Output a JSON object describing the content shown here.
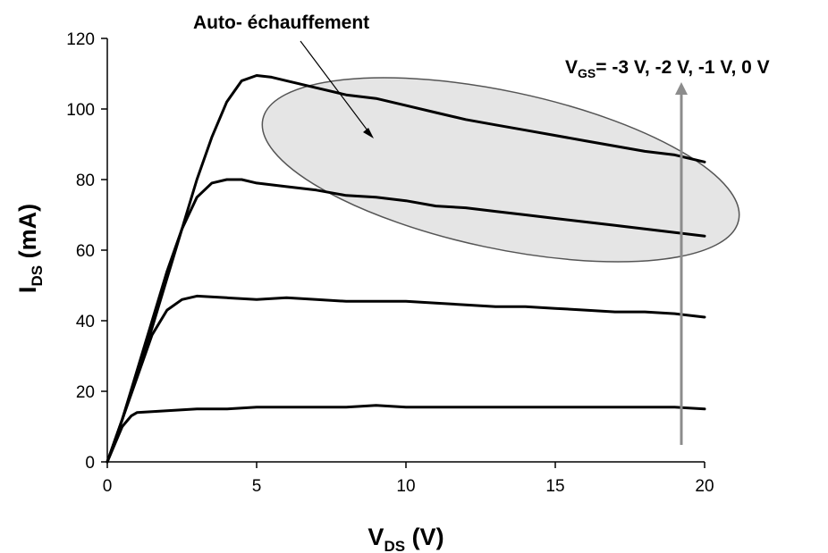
{
  "chart_data": {
    "type": "line",
    "xlabel": "V",
    "xlabel_sub": "DS",
    "xlabel_unit": " (V)",
    "ylabel": "I",
    "ylabel_sub": "DS",
    "ylabel_unit": " (mA)",
    "xlim": [
      0,
      20
    ],
    "ylim": [
      0,
      120
    ],
    "xticks": [
      0,
      5,
      10,
      15,
      20
    ],
    "yticks": [
      0,
      20,
      40,
      60,
      80,
      100,
      120
    ],
    "grid": false,
    "legend": "none",
    "annotations": {
      "self_heating": "Auto- échauffement",
      "vgs_prefix": "V",
      "vgs_sub": "GS",
      "vgs_values": "= -3 V, -2 V, -1 V, 0 V"
    },
    "series": [
      {
        "x": [
          0,
          0.5,
          0.8,
          1,
          2,
          3,
          4,
          5,
          6,
          7,
          8,
          9,
          10,
          11,
          12,
          13,
          14,
          15,
          16,
          17,
          18,
          19,
          20
        ],
        "y": [
          0,
          10,
          13,
          14,
          14.5,
          15,
          15,
          15.5,
          15.5,
          15.5,
          15.5,
          16,
          15.5,
          15.5,
          15.5,
          15.5,
          15.5,
          15.5,
          15.5,
          15.5,
          15.5,
          15.5,
          15
        ]
      },
      {
        "x": [
          0,
          0.5,
          1,
          1.5,
          2,
          2.5,
          3,
          4,
          5,
          6,
          7,
          8,
          9,
          10,
          11,
          12,
          13,
          14,
          15,
          16,
          17,
          18,
          19,
          20
        ],
        "y": [
          0,
          12,
          24,
          36,
          43,
          46,
          47,
          46.5,
          46,
          46.5,
          46,
          45.5,
          45.5,
          45.5,
          45,
          44.5,
          44,
          44,
          43.5,
          43,
          42.5,
          42.5,
          42,
          41
        ]
      },
      {
        "x": [
          0,
          0.5,
          1,
          1.5,
          2,
          2.5,
          3,
          3.5,
          4,
          4.5,
          5,
          6,
          7,
          8,
          9,
          10,
          11,
          12,
          13,
          14,
          15,
          16,
          17,
          18,
          19,
          20
        ],
        "y": [
          0,
          12,
          26,
          40,
          54,
          66,
          75,
          79,
          80,
          80,
          79,
          78,
          77,
          75.5,
          75,
          74,
          72.5,
          72,
          71,
          70,
          69,
          68,
          67,
          66,
          65,
          64
        ]
      },
      {
        "x": [
          0,
          0.5,
          1,
          1.5,
          2,
          2.5,
          3,
          3.5,
          4,
          4.5,
          5,
          5.5,
          6,
          7,
          8,
          9,
          10,
          11,
          12,
          13,
          14,
          15,
          16,
          17,
          18,
          19,
          20
        ],
        "y": [
          0,
          12,
          25,
          38,
          52,
          66,
          80,
          92,
          102,
          108,
          109.5,
          109,
          108,
          106,
          104,
          103,
          101,
          99,
          97,
          95.5,
          94,
          92.5,
          91,
          89.5,
          88,
          87,
          85
        ]
      }
    ]
  }
}
